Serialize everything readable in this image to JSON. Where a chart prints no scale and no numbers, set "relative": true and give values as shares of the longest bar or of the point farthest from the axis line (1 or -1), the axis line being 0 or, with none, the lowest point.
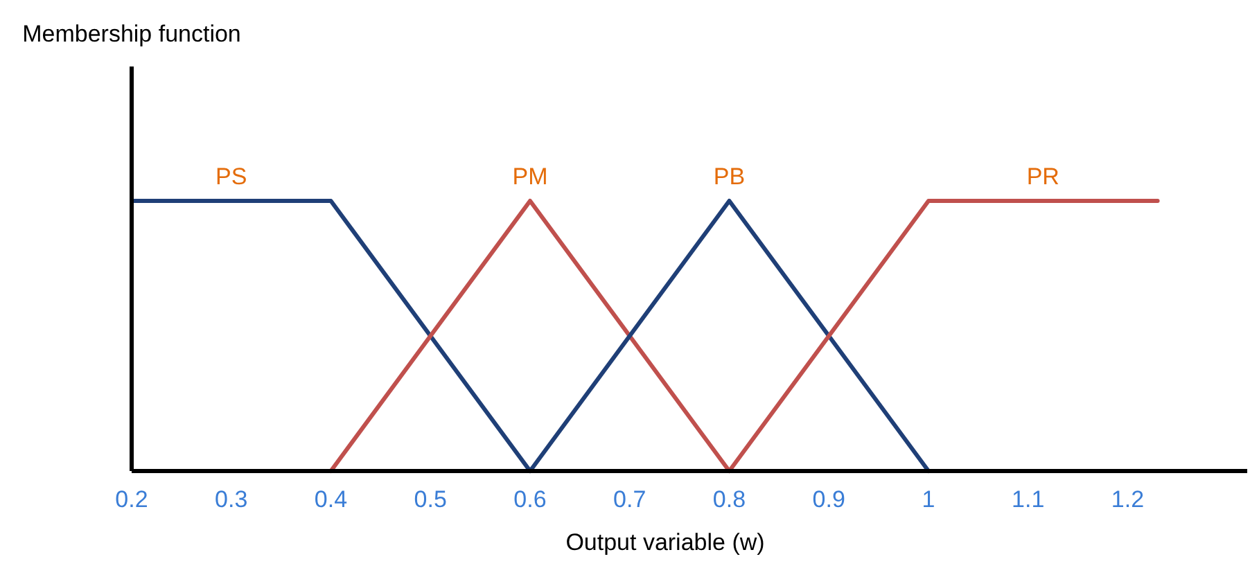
{
  "chart_data": {
    "type": "line",
    "relative": true,
    "annotations": [
      "Membership function"
    ],
    "xlabel": "Output variable (w)",
    "xlim": [
      0.2,
      1.32
    ],
    "xticks": [
      0.2,
      0.3,
      0.4,
      0.5,
      0.6,
      0.7,
      0.8,
      0.9,
      1,
      1.1,
      1.2
    ],
    "grid": false,
    "series": [
      {
        "name": "PS",
        "color": "#1f3f77",
        "x": [
          0.2,
          0.4,
          0.6
        ],
        "values": [
          1,
          1,
          0
        ]
      },
      {
        "name": "PM",
        "color": "#c0504d",
        "x": [
          0.4,
          0.6,
          0.8
        ],
        "values": [
          0,
          1,
          0
        ]
      },
      {
        "name": "PB",
        "color": "#1f3f77",
        "x": [
          0.6,
          0.8,
          1.0
        ],
        "values": [
          0,
          1,
          0
        ]
      },
      {
        "name": "PR",
        "color": "#c0504d",
        "x": [
          0.8,
          1.0,
          1.23
        ],
        "values": [
          0,
          1,
          1
        ]
      }
    ]
  }
}
